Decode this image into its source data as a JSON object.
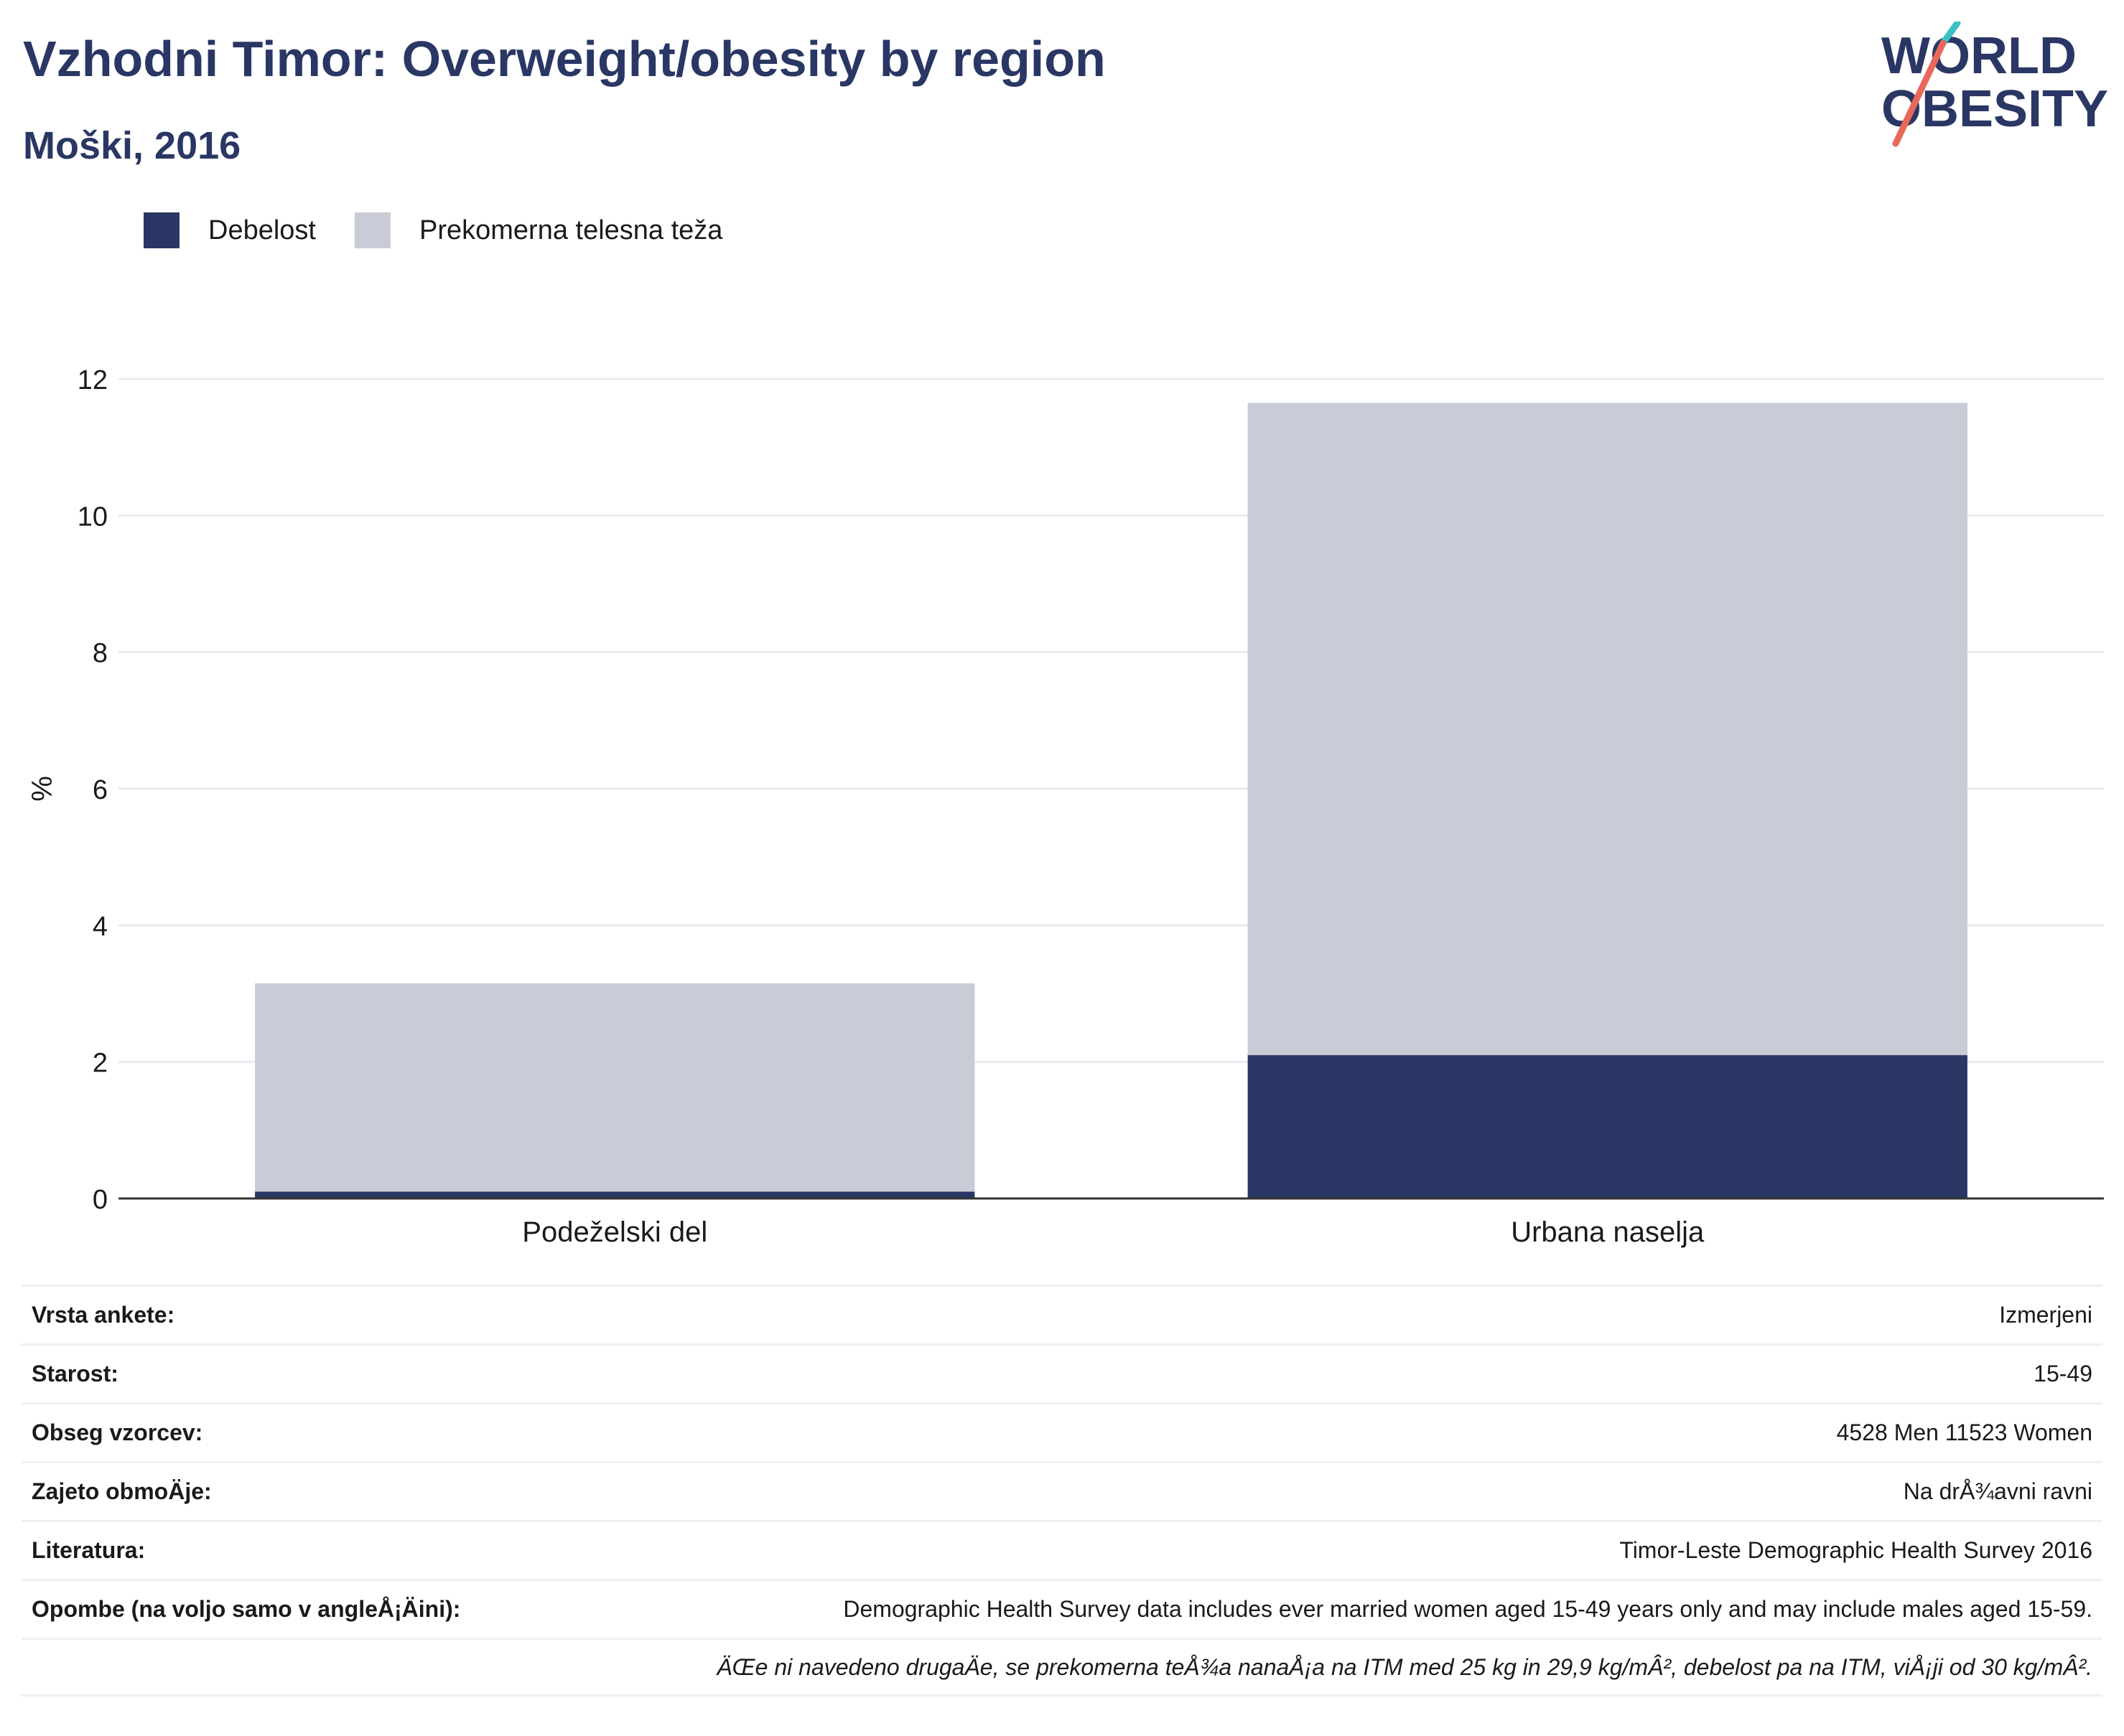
{
  "header": {
    "title": "Vzhodni Timor: Overweight/obesity by region",
    "subtitle": "Moški, 2016"
  },
  "logo": {
    "line1": "WORLD",
    "line2": "OBESITY"
  },
  "colors": {
    "obesity": "#2a3765",
    "overweight": "#c9cbd6",
    "title": "#2a3765",
    "grid": "#e8ebf0",
    "axis": "#333333"
  },
  "chart_data": {
    "type": "bar",
    "stacked": true,
    "categories": [
      "Podeželski del",
      "Urbana naselja"
    ],
    "series": [
      {
        "name": "Debelost",
        "values": [
          0.1,
          2.1
        ]
      },
      {
        "name": "Prekomerna telesna teža",
        "values": [
          3.05,
          9.55
        ]
      }
    ],
    "ylabel": "%",
    "ylim": [
      0,
      12
    ],
    "yticks": [
      0,
      2,
      4,
      6,
      8,
      10,
      12
    ],
    "grid": true,
    "legend": "top-left"
  },
  "info": [
    {
      "label": "Vrsta ankete:",
      "value": "Izmerjeni"
    },
    {
      "label": "Starost:",
      "value": "15-49"
    },
    {
      "label": "Obseg vzorcev:",
      "value": "4528 Men 11523 Women"
    },
    {
      "label": "Zajeto obmoÄje:",
      "value": "Na drÅ¾avni ravni"
    },
    {
      "label": "Literatura:",
      "value": "Timor-Leste Demographic Health Survey 2016"
    },
    {
      "label": "Opombe (na voljo samo v angleÅ¡Äini):",
      "value": "Demographic Health Survey data includes ever married women aged 15-49 years only and may include males aged 15-59."
    },
    {
      "label": "",
      "value": "ÄŒe ni navedeno drugaÄe, se prekomerna teÅ¾a nanaÅ¡a na ITM med 25 kg in 29,9 kg/mÂ², debelost pa na ITM, viÅ¡ji od 30 kg/mÂ²."
    }
  ]
}
